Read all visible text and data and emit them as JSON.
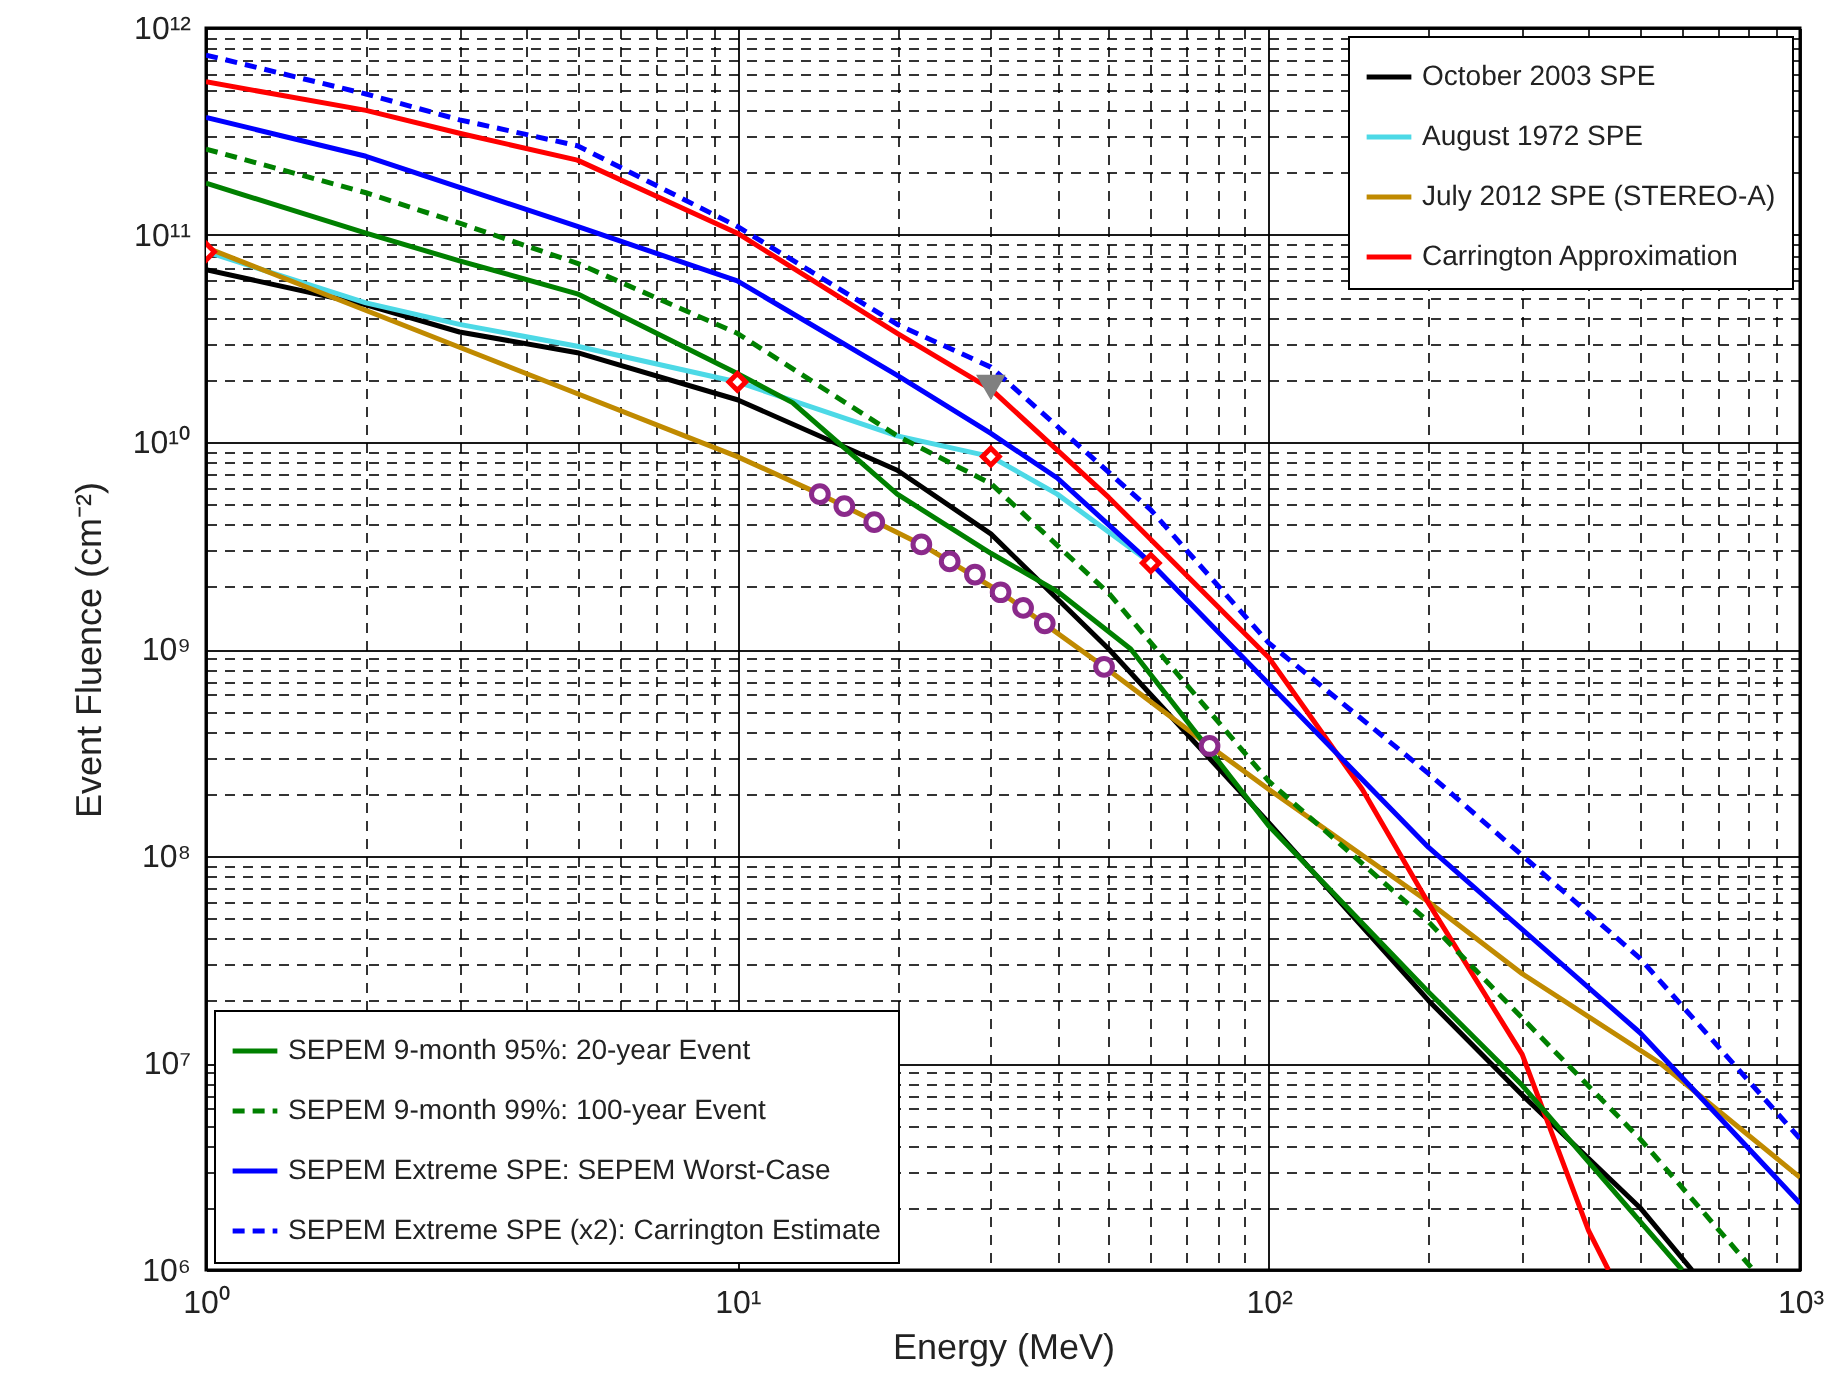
{
  "chart_data": {
    "type": "line",
    "xlabel": "Energy (MeV)",
    "ylabel": "Event Fluence (cm⁻²)",
    "log": "xy",
    "grid": true,
    "legend": "bottom left",
    "xlim": [
      1,
      1000
    ],
    "ylim": [
      1000000.0,
      1000000000000.0
    ],
    "xticks": [
      {
        "value": 1,
        "label": "10⁰"
      },
      {
        "value": 2,
        "label": null
      },
      {
        "value": 3,
        "label": null
      },
      {
        "value": 4,
        "label": null
      },
      {
        "value": 5,
        "label": null
      },
      {
        "value": 6,
        "label": null
      },
      {
        "value": 7,
        "label": null
      },
      {
        "value": 8,
        "label": null
      },
      {
        "value": 9,
        "label": null
      },
      {
        "value": 10,
        "label": "10¹"
      },
      {
        "value": 20,
        "label": null
      },
      {
        "value": 30,
        "label": null
      },
      {
        "value": 40,
        "label": null
      },
      {
        "value": 50,
        "label": null
      },
      {
        "value": 60,
        "label": null
      },
      {
        "value": 70,
        "label": null
      },
      {
        "value": 80,
        "label": null
      },
      {
        "value": 90,
        "label": null
      },
      {
        "value": 100,
        "label": "10²"
      },
      {
        "value": 200,
        "label": null
      },
      {
        "value": 300,
        "label": null
      },
      {
        "value": 400,
        "label": null
      },
      {
        "value": 500,
        "label": null
      },
      {
        "value": 600,
        "label": null
      },
      {
        "value": 700,
        "label": null
      },
      {
        "value": 800,
        "label": null
      },
      {
        "value": 900,
        "label": null
      },
      {
        "value": 1000,
        "label": "10³"
      }
    ],
    "yticks": [
      {
        "value": 1000000.0,
        "label": "10⁶"
      },
      {
        "value": 2000000.0,
        "label": null
      },
      {
        "value": 3000000.0,
        "label": null
      },
      {
        "value": 4000000.0,
        "label": null
      },
      {
        "value": 5000000.0,
        "label": null
      },
      {
        "value": 6000000.0,
        "label": null
      },
      {
        "value": 7000000.0,
        "label": null
      },
      {
        "value": 8000000.0,
        "label": null
      },
      {
        "value": 9000000.0,
        "label": null
      },
      {
        "value": 10000000.0,
        "label": "10⁷"
      },
      {
        "value": 20000000.0,
        "label": null
      },
      {
        "value": 30000000.0,
        "label": null
      },
      {
        "value": 40000000.0,
        "label": null
      },
      {
        "value": 50000000.0,
        "label": null
      },
      {
        "value": 60000000.0,
        "label": null
      },
      {
        "value": 70000000.0,
        "label": null
      },
      {
        "value": 80000000.0,
        "label": null
      },
      {
        "value": 90000000.0,
        "label": null
      },
      {
        "value": 100000000.0,
        "label": "10⁸"
      },
      {
        "value": 200000000.0,
        "label": null
      },
      {
        "value": 300000000.0,
        "label": null
      },
      {
        "value": 400000000.0,
        "label": null
      },
      {
        "value": 500000000.0,
        "label": null
      },
      {
        "value": 600000000.0,
        "label": null
      },
      {
        "value": 700000000.0,
        "label": null
      },
      {
        "value": 800000000.0,
        "label": null
      },
      {
        "value": 900000000.0,
        "label": null
      },
      {
        "value": 1000000000.0,
        "label": "10⁹"
      },
      {
        "value": 2000000000.0,
        "label": null
      },
      {
        "value": 3000000000.0,
        "label": null
      },
      {
        "value": 4000000000.0,
        "label": null
      },
      {
        "value": 5000000000.0,
        "label": null
      },
      {
        "value": 6000000000.0,
        "label": null
      },
      {
        "value": 7000000000.0,
        "label": null
      },
      {
        "value": 8000000000.0,
        "label": null
      },
      {
        "value": 9000000000.0,
        "label": null
      },
      {
        "value": 10000000000.0,
        "label": "10¹⁰"
      },
      {
        "value": 20000000000.0,
        "label": null
      },
      {
        "value": 30000000000.0,
        "label": null
      },
      {
        "value": 40000000000.0,
        "label": null
      },
      {
        "value": 50000000000.0,
        "label": null
      },
      {
        "value": 60000000000.0,
        "label": null
      },
      {
        "value": 70000000000.0,
        "label": null
      },
      {
        "value": 80000000000.0,
        "label": null
      },
      {
        "value": 90000000000.0,
        "label": null
      },
      {
        "value": 100000000000.0,
        "label": "10¹¹"
      },
      {
        "value": 200000000000.0,
        "label": null
      },
      {
        "value": 300000000000.0,
        "label": null
      },
      {
        "value": 400000000000.0,
        "label": null
      },
      {
        "value": 500000000000.0,
        "label": null
      },
      {
        "value": 600000000000.0,
        "label": null
      },
      {
        "value": 700000000000.0,
        "label": null
      },
      {
        "value": 800000000000.0,
        "label": null
      },
      {
        "value": 900000000000.0,
        "label": null
      },
      {
        "value": 1000000000000.0,
        "label": "10¹²"
      }
    ],
    "series": [
      {
        "name": "October 2003 SPE",
        "color": "#000000",
        "line_style": "solid",
        "x": [
          1,
          2,
          3,
          5,
          10,
          20,
          30,
          50,
          100,
          200,
          300,
          500,
          626
        ],
        "values": [
          68000000000.0,
          46000000000.0,
          34000000000.0,
          27000000000.0,
          16000000000.0,
          7300000000.0,
          3600000000.0,
          1000000000.0,
          145000000.0,
          20000000.0,
          7000000.0,
          2000000.0,
          1000000.0
        ]
      },
      {
        "name": "August 1972 SPE",
        "color": "#4dd9e6",
        "line_style": "solid",
        "x": [
          1,
          2,
          3,
          5,
          10,
          20,
          30,
          40,
          60
        ],
        "values": [
          83000000000.0,
          47000000000.0,
          37000000000.0,
          29000000000.0,
          19500000000.0,
          10700000000.0,
          8500000000.0,
          5600000000.0,
          2600000000.0
        ]
      },
      {
        "type": "scatter",
        "color": "#ff0000",
        "marker": "diamond",
        "x": [
          1,
          10,
          30,
          60
        ],
        "values": [
          83000000000.0,
          19500000000.0,
          8500000000.0,
          2600000000.0
        ]
      },
      {
        "name": "July 2012 SPE (STEREO-A)",
        "color": "#c08a00",
        "line_style": "solid",
        "x": [
          1,
          10,
          14.3,
          22.2,
          31.3,
          49,
          77.4,
          100,
          200,
          300,
          545,
          1000
        ],
        "values": [
          87000000000.0,
          8500000000.0,
          5600000000.0,
          3200000000.0,
          1880000000.0,
          820000000.0,
          340000000.0,
          210000000.0,
          60000000.0,
          27000000.0,
          10000000.0,
          2800000.0
        ]
      },
      {
        "type": "scatter",
        "color": "#8b2a8b",
        "marker": "circle",
        "x": [
          14.3,
          15.9,
          18.1,
          22.2,
          25.1,
          28.0,
          31.3,
          34.5,
          37.9,
          49,
          77.4
        ],
        "values": [
          5600000000.0,
          4900000000.0,
          4100000000.0,
          3200000000.0,
          2650000000.0,
          2290000000.0,
          1880000000.0,
          1580000000.0,
          1330000000.0,
          820000000.0,
          340000000.0
        ]
      },
      {
        "name": "Carrington Approximation",
        "color": "#ff0000",
        "line_style": "solid",
        "x": [
          1,
          2,
          3,
          5,
          10,
          20,
          30,
          50,
          100,
          150,
          200,
          300,
          400,
          436
        ],
        "values": [
          550000000000.0,
          400000000000.0,
          310000000000.0,
          230000000000.0,
          102000000000.0,
          33500000000.0,
          18000000000.0,
          5400000000.0,
          910000000.0,
          210000000.0,
          59000000.0,
          11000000.0,
          1550000.0,
          1000000.0
        ]
      },
      {
        "type": "scatter",
        "color": "#808080",
        "marker": "triangle",
        "x": [
          30
        ],
        "values": [
          18600000000.0
        ]
      },
      {
        "name": "SEPEM 9-month 95%: 20-year Event",
        "color": "#008000",
        "line_style": "solid",
        "x": [
          1,
          2,
          3,
          5,
          10,
          12.7,
          20,
          30,
          40,
          55,
          100,
          200,
          300,
          600
        ],
        "values": [
          178000000000.0,
          102000000000.0,
          75000000000.0,
          52000000000.0,
          21400000000.0,
          15500000000.0,
          5600000000.0,
          2900000000.0,
          1900000000.0,
          1000000000.0,
          140000000.0,
          22000000.0,
          7800000.0,
          1000000.0
        ]
      },
      {
        "name": "SEPEM 9-month 99%: 100-year Event",
        "color": "#008000",
        "line_style": "dashed",
        "x": [
          1,
          2,
          3,
          5,
          10,
          20,
          30,
          50,
          100,
          200,
          500,
          817
        ],
        "values": [
          260000000000.0,
          160000000000.0,
          114000000000.0,
          73000000000.0,
          33500000000.0,
          10700000000.0,
          6300000000.0,
          1860000000.0,
          230000000.0,
          48000000.0,
          4300000.0,
          1000000.0
        ]
      },
      {
        "name": "SEPEM Extreme SPE: SEPEM Worst-Case",
        "color": "#0000ff",
        "line_style": "solid",
        "x": [
          1,
          2,
          3,
          5,
          10,
          20,
          30,
          40,
          60,
          100,
          200,
          500,
          1000
        ],
        "values": [
          370000000000.0,
          240000000000.0,
          170000000000.0,
          110000000000.0,
          60000000000.0,
          21000000000.0,
          11000000000.0,
          6700000000.0,
          2600000000.0,
          680000000.0,
          110000000.0,
          14000000.0,
          2100000.0
        ]
      },
      {
        "name": "SEPEM Extreme SPE (x2): Carrington Estimate",
        "color": "#0000ff",
        "line_style": "dashed",
        "x": [
          1,
          2,
          3,
          5,
          10,
          20,
          30,
          60,
          100,
          200,
          500,
          1000
        ],
        "values": [
          740000000000.0,
          480000000000.0,
          360000000000.0,
          270000000000.0,
          110000000000.0,
          37000000000.0,
          23000000000.0,
          4700000000.0,
          1070000000.0,
          250000000.0,
          32000000.0,
          4300000.0
        ]
      }
    ]
  }
}
